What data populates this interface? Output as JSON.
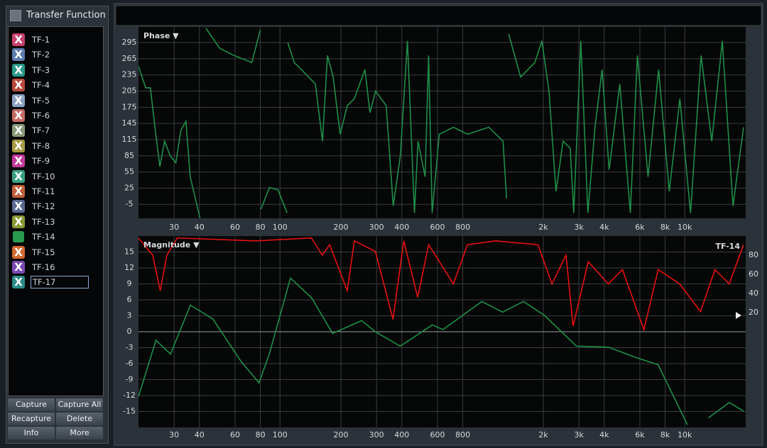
{
  "sidebar": {
    "title": "Transfer Function",
    "items": [
      {
        "label": "TF-1",
        "icon": "X",
        "color": "#c8406e"
      },
      {
        "label": "TF-2",
        "icon": "X",
        "color": "#5a7cae"
      },
      {
        "label": "TF-3",
        "icon": "X",
        "color": "#2a9a8a"
      },
      {
        "label": "TF-4",
        "icon": "X",
        "color": "#b84a3a"
      },
      {
        "label": "TF-5",
        "icon": "X",
        "color": "#8ca2c2"
      },
      {
        "label": "TF-6",
        "icon": "X",
        "color": "#c46a62"
      },
      {
        "label": "TF-7",
        "icon": "X",
        "color": "#8a9a7a"
      },
      {
        "label": "TF-8",
        "icon": "X",
        "color": "#a89a42"
      },
      {
        "label": "TF-9",
        "icon": "X",
        "color": "#c43a9c"
      },
      {
        "label": "TF-10",
        "icon": "X",
        "color": "#3aa082"
      },
      {
        "label": "TF-11",
        "icon": "X",
        "color": "#c2603a"
      },
      {
        "label": "TF-12",
        "icon": "X",
        "color": "#5a6a92"
      },
      {
        "label": "TF-13",
        "icon": "X",
        "color": "#8a9a32"
      },
      {
        "label": "TF-14",
        "color": "#2a9a50"
      },
      {
        "label": "TF-15",
        "icon": "X",
        "color": "#d26a30"
      },
      {
        "label": "TF-16",
        "icon": "X",
        "color": "#7a4ab2"
      },
      {
        "label": "TF-17",
        "icon": "X",
        "color": "#2a8a8a",
        "selected": true
      }
    ],
    "buttons": [
      "Capture",
      "Capture All",
      "Recapture",
      "Delete",
      "Info",
      "More"
    ]
  },
  "chart_data": [
    {
      "type": "line",
      "title": "Phase ▼",
      "xscale": "log",
      "xlim": [
        20,
        20000
      ],
      "ylim": [
        -31,
        324
      ],
      "grid": true,
      "xticks": [
        30,
        40,
        60,
        80,
        100,
        200,
        300,
        400,
        600,
        800,
        {
          "value": 2000,
          "label": "2k"
        },
        {
          "value": 3000,
          "label": "3k"
        },
        {
          "value": 4000,
          "label": "4k"
        },
        {
          "value": 6000,
          "label": "6k"
        },
        {
          "value": 8000,
          "label": "8k"
        },
        {
          "value": 10000,
          "label": "10k"
        }
      ],
      "yticks": [
        295,
        265,
        235,
        205,
        175,
        145,
        115,
        85,
        55,
        25,
        -5
      ],
      "series": [
        {
          "color": "#1f8f48",
          "x": [
            20,
            21.7,
            22.9,
            24.1,
            25.5,
            26.9,
            28.7,
            30.6,
            32.4,
            34.3,
            36,
            40.3,
            null,
            43,
            50.5,
            59.3,
            72.6,
            79.9,
            null,
            80.5,
            88.7,
            97.7,
            108.5,
            null,
            109.4,
            117.6,
            127.5,
            149.7,
            162.3,
            171.7,
            183.1,
            198.4,
            215.1,
            233.1,
            263.1,
            278.3,
            296.8,
            334.9,
            362.9,
            393.3,
            426.3,
            462,
            480.9,
            521.2,
            542.6,
            564.8,
            612.4,
            719.6,
            845.4,
            1076.6,
            1264.6,
            1316.6,
            null,
            1348.8,
            1545.8,
            1816,
            1968,
            2134,
            2312,
            2506,
            2716,
            2829,
            3065,
            3323,
            3601,
            3903,
            4230,
            4773,
            5385,
            5835,
            6585,
            7429,
            8384,
            9459,
            10677,
            12046,
            13592,
            15336,
            17302,
            19521
          ],
          "values": [
            251,
            211,
            211,
            138,
            65,
            112,
            85,
            72,
            132,
            149,
            46,
            -31,
            null,
            322,
            284,
            271,
            258,
            318,
            null,
            -14,
            26,
            22,
            -21,
            null,
            295,
            258,
            245,
            218,
            112,
            271,
            231,
            125,
            178,
            191,
            245,
            165,
            205,
            178,
            -8,
            85,
            298,
            -21,
            112,
            46,
            271,
            -21,
            125,
            138,
            125,
            138,
            112,
            6,
            null,
            311,
            231,
            258,
            298,
            205,
            19,
            112,
            99,
            -21,
            298,
            -21,
            138,
            245,
            59,
            218,
            -21,
            271,
            46,
            245,
            19,
            191,
            -21,
            271,
            112,
            298,
            -8,
            138
          ]
        }
      ]
    },
    {
      "type": "line",
      "title": "Magnitude ▼",
      "trace_label": "TF-14",
      "xscale": "log",
      "xlim": [
        20,
        20000
      ],
      "ylim": [
        -18,
        18
      ],
      "y2lim": [
        -100,
        100
      ],
      "grid": true,
      "xticks": [
        30,
        40,
        60,
        80,
        100,
        200,
        300,
        400,
        600,
        800,
        {
          "value": 2000,
          "label": "2k"
        },
        {
          "value": 3000,
          "label": "3k"
        },
        {
          "value": 4000,
          "label": "4k"
        },
        {
          "value": 6000,
          "label": "6k"
        },
        {
          "value": 8000,
          "label": "8k"
        },
        {
          "value": 10000,
          "label": "10k"
        }
      ],
      "yticks": [
        15,
        12,
        9,
        6,
        3,
        0,
        -3,
        -6,
        -9,
        -12,
        -15
      ],
      "y2ticks": [
        80,
        60,
        40,
        20
      ],
      "series": [
        {
          "color": "#e81010",
          "axis": "y2",
          "x": [
            20,
            23.5,
            25.6,
            27.6,
            31.1,
            75.8,
            143,
            162,
            176,
            215,
            233,
            296,
            362,
            409,
            479,
            543,
            719,
            844,
            1162,
            1882,
            2208,
            2591,
            2807,
            3332,
            4193,
            4922,
            6282,
            7386,
            9425,
            11960,
            14100,
            16580,
            19500
          ],
          "values": [
            98,
            80,
            43,
            80,
            98,
            95,
            98,
            80,
            91,
            43,
            95,
            84,
            13,
            95,
            36,
            91,
            50,
            91,
            95,
            91,
            50,
            80,
            6,
            73,
            50,
            65,
            2,
            65,
            50,
            21,
            65,
            50,
            91
          ]
        },
        {
          "color": "#1f8f48",
          "x": [
            20,
            24.4,
            28.8,
            36.1,
            46.6,
            64.3,
            78.8,
            88.6,
            112.7,
            143.2,
            182,
            253,
            296,
            393,
            566,
            638,
            994,
            1258,
            1596,
            2025,
            2917,
            4193,
            5802,
            7386,
            10310,
            null,
            13100,
            16580,
            19500
          ],
          "values": [
            -12.2,
            -1.6,
            -4.2,
            5,
            2.4,
            -5.6,
            -9.6,
            -4.2,
            10.1,
            6.4,
            -0.3,
            2.1,
            0,
            -2.7,
            1.3,
            0.4,
            5.7,
            3.7,
            5.7,
            3.1,
            -2.7,
            -2.9,
            -4.9,
            -6.2,
            -17.5,
            null,
            -16.2,
            -13.3,
            -14.9
          ]
        }
      ]
    }
  ]
}
